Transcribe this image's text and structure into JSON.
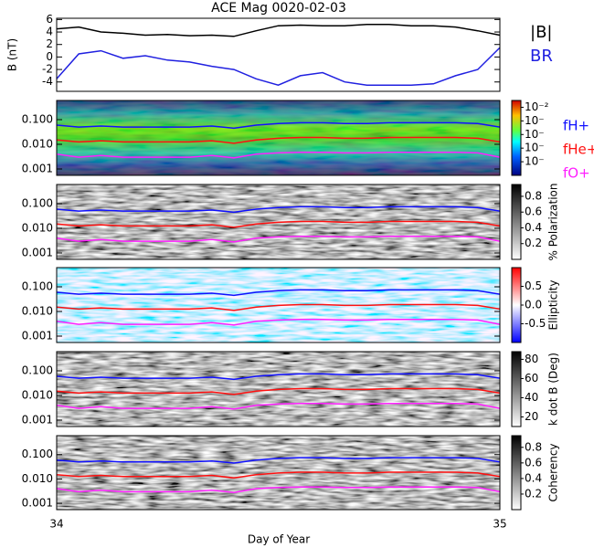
{
  "chart_data": {
    "title": "ACE Mag 0020-02-03",
    "xlabel": "Day of Year",
    "xlim": [
      34,
      35
    ],
    "xticks": [
      34,
      35
    ],
    "x": [
      34.0,
      34.05,
      34.1,
      34.15,
      34.2,
      34.25,
      34.3,
      34.35,
      34.4,
      34.45,
      34.5,
      34.55,
      34.6,
      34.65,
      34.7,
      34.75,
      34.8,
      34.85,
      34.9,
      34.95,
      35.0
    ],
    "panels": [
      {
        "type": "line",
        "ylabel": "B (nT)",
        "ylim": [
          -5.5,
          6.2
        ],
        "yticks": [
          -4,
          -2,
          0,
          2,
          4,
          6
        ],
        "series": [
          {
            "name": "|B|",
            "color": "#000000",
            "values": [
              4.5,
              4.8,
              4.0,
              3.8,
              3.5,
              3.6,
              3.4,
              3.5,
              3.3,
              4.2,
              5.0,
              5.1,
              5.0,
              5.0,
              5.2,
              5.2,
              5.0,
              5.0,
              4.8,
              4.2,
              3.5
            ]
          },
          {
            "name": "BR",
            "color": "#2020e0",
            "values": [
              -3.5,
              0.5,
              1.0,
              -0.2,
              0.2,
              -0.5,
              -0.8,
              -1.5,
              -2.0,
              -3.5,
              -4.5,
              -3.0,
              -2.5,
              -4.0,
              -4.5,
              -4.5,
              -4.5,
              -4.3,
              -3.0,
              -2.0,
              1.5
            ]
          }
        ]
      },
      {
        "type": "spectrogram",
        "palette": "jet",
        "log": true,
        "ylim": [
          0.00055,
          0.6
        ],
        "yticks": [
          {
            "value": 0.001,
            "label": "0.001"
          },
          {
            "value": 0.01,
            "label": "0.010"
          },
          {
            "value": 0.1,
            "label": "0.100"
          }
        ],
        "clim": [
          -7,
          -1.5
        ],
        "cticks": [
          {
            "value": -2,
            "label": "10⁻²"
          },
          {
            "value": -3,
            "label": "10⁻"
          },
          {
            "value": -4,
            "label": "10⁻"
          },
          {
            "value": -5,
            "label": "10⁻"
          },
          {
            "value": -6,
            "label": "10⁻"
          }
        ]
      },
      {
        "type": "spectrogram",
        "palette": "gray",
        "log": true,
        "clabel": "% Polarization",
        "ylim": [
          0.00055,
          0.6
        ],
        "yticks": [
          {
            "value": 0.001,
            "label": "0.001"
          },
          {
            "value": 0.01,
            "label": "0.010"
          },
          {
            "value": 0.1,
            "label": "0.100"
          }
        ],
        "clim": [
          0,
          0.95
        ],
        "cticks": [
          0.2,
          0.4,
          0.6,
          0.8
        ]
      },
      {
        "type": "spectrogram",
        "palette": "redblue",
        "log": true,
        "clabel": "Ellipticity",
        "ylim": [
          0.00055,
          0.6
        ],
        "yticks": [
          {
            "value": 0.001,
            "label": "0.001"
          },
          {
            "value": 0.01,
            "label": "0.010"
          },
          {
            "value": 0.1,
            "label": "0.100"
          }
        ],
        "clim": [
          -1,
          1
        ],
        "cticks": [
          {
            "value": -0.5,
            "label": "-0.5"
          },
          {
            "value": 0,
            "label": "0.0"
          },
          {
            "value": 0.5,
            "label": "0.5"
          }
        ]
      },
      {
        "type": "spectrogram",
        "palette": "gray",
        "log": true,
        "clabel": "k dot B (Deg)",
        "ylim": [
          0.00055,
          0.6
        ],
        "yticks": [
          {
            "value": 0.001,
            "label": "0.001"
          },
          {
            "value": 0.01,
            "label": "0.010"
          },
          {
            "value": 0.1,
            "label": "0.100"
          }
        ],
        "clim": [
          10,
          88
        ],
        "cticks": [
          20,
          40,
          60,
          80
        ]
      },
      {
        "type": "spectrogram",
        "palette": "gray",
        "log": true,
        "clabel": "Coherency",
        "ylim": [
          0.00055,
          0.6
        ],
        "yticks": [
          {
            "value": 0.001,
            "label": "0.001"
          },
          {
            "value": 0.01,
            "label": "0.010"
          },
          {
            "value": 0.1,
            "label": "0.100"
          }
        ],
        "clim": [
          0,
          0.95
        ],
        "cticks": [
          0.2,
          0.4,
          0.6,
          0.8
        ]
      }
    ],
    "frequencies": {
      "series": [
        {
          "name": "fH+",
          "color": "#1010ff",
          "values": [
            0.06,
            0.05,
            0.055,
            0.05,
            0.05,
            0.05,
            0.05,
            0.055,
            0.045,
            0.06,
            0.07,
            0.075,
            0.075,
            0.07,
            0.07,
            0.075,
            0.075,
            0.075,
            0.075,
            0.07,
            0.05
          ]
        },
        {
          "name": "fHe+",
          "color": "#ff1010",
          "values": [
            0.015,
            0.0125,
            0.014,
            0.0125,
            0.0125,
            0.0125,
            0.0125,
            0.014,
            0.011,
            0.015,
            0.0175,
            0.019,
            0.019,
            0.0175,
            0.0175,
            0.019,
            0.019,
            0.019,
            0.019,
            0.0175,
            0.0125
          ]
        },
        {
          "name": "fO+",
          "color": "#ff20ff",
          "values": [
            0.004,
            0.003,
            0.0035,
            0.003,
            0.003,
            0.003,
            0.003,
            0.0035,
            0.0028,
            0.004,
            0.0045,
            0.0047,
            0.0047,
            0.0045,
            0.0045,
            0.0047,
            0.0047,
            0.0047,
            0.0047,
            0.0045,
            0.003
          ]
        }
      ]
    }
  }
}
